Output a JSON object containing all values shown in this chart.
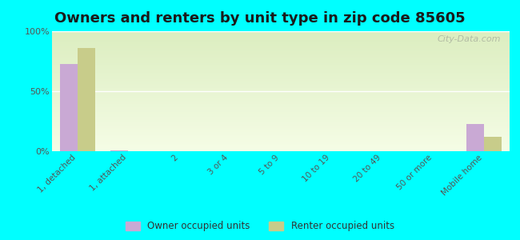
{
  "title": "Owners and renters by unit type in zip code 85605",
  "categories": [
    "1, detached",
    "1, attached",
    "2",
    "3 or 4",
    "5 to 9",
    "10 to 19",
    "20 to 49",
    "50 or more",
    "Mobile home"
  ],
  "owner_values": [
    73,
    1,
    0,
    0,
    0,
    0,
    0,
    0,
    23
  ],
  "renter_values": [
    86,
    0,
    0,
    0,
    0,
    0,
    0,
    0,
    12
  ],
  "owner_color": "#c9a9d4",
  "renter_color": "#c8cc8a",
  "background_color": "#00ffff",
  "ylim": [
    0,
    100
  ],
  "yticks": [
    0,
    50,
    100
  ],
  "ytick_labels": [
    "0%",
    "50%",
    "100%"
  ],
  "legend_owner": "Owner occupied units",
  "legend_renter": "Renter occupied units",
  "title_fontsize": 13,
  "bar_width": 0.35,
  "watermark": "City-Data.com"
}
